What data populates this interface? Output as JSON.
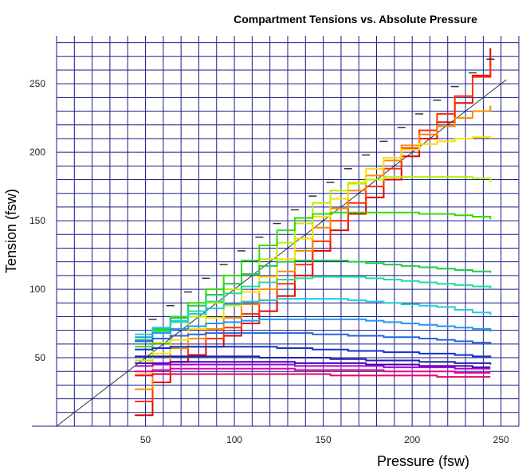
{
  "chart_data": {
    "type": "line",
    "title": "Compartment Tensions vs. Absolute Pressure",
    "xlabel": "Pressure (fsw)",
    "ylabel": "Tension (fsw)",
    "xlim": [
      0,
      260
    ],
    "ylim": [
      0,
      285
    ],
    "x_ticks": [
      50,
      100,
      150,
      200,
      250
    ],
    "y_ticks": [
      50,
      100,
      150,
      200,
      250
    ],
    "grid": true,
    "legend": "none",
    "identity_line": true,
    "pressures": [
      44,
      54,
      64,
      74,
      84,
      94,
      104,
      114,
      124,
      134,
      144,
      154,
      164,
      174,
      184,
      194,
      204,
      214,
      224,
      234,
      244
    ],
    "ceiling_markers": {
      "x": [
        54,
        64,
        74,
        84,
        94,
        104,
        114,
        124,
        134,
        144,
        154,
        164,
        174,
        184,
        194,
        204,
        214,
        224,
        234,
        244
      ],
      "y": [
        78,
        88,
        98,
        108,
        118,
        128,
        138,
        148,
        158,
        168,
        178,
        188,
        198,
        208,
        218,
        228,
        238,
        248,
        258,
        268
      ]
    },
    "series": [
      {
        "color": "#e60000",
        "values": [
          8,
          32,
          47,
          52,
          58,
          66,
          75,
          84,
          95,
          110,
          128,
          143,
          155,
          167,
          180,
          197,
          210,
          222,
          236,
          256,
          276
        ]
      },
      {
        "color": "#ff3300",
        "values": [
          18,
          38,
          51,
          58,
          64,
          72,
          82,
          92,
          104,
          118,
          135,
          150,
          163,
          175,
          188,
          203,
          216,
          228,
          241,
          255,
          268
        ]
      },
      {
        "color": "#ff8800",
        "values": [
          27,
          46,
          57,
          64,
          71,
          79,
          89,
          100,
          113,
          128,
          145,
          159,
          172,
          183,
          194,
          205,
          213,
          219,
          225,
          230,
          234
        ]
      },
      {
        "color": "#ffdd00",
        "values": [
          38,
          53,
          63,
          71,
          79,
          88,
          98,
          109,
          122,
          137,
          153,
          166,
          178,
          188,
          196,
          202,
          206,
          208,
          210,
          211,
          210
        ]
      },
      {
        "color": "#bbee00",
        "values": [
          48,
          61,
          71,
          80,
          90,
          100,
          111,
          122,
          134,
          148,
          163,
          172,
          177,
          180,
          182,
          182,
          182,
          182,
          182,
          181,
          178
        ]
      },
      {
        "color": "#33dd00",
        "values": [
          58,
          70,
          80,
          90,
          100,
          110,
          121,
          132,
          143,
          152,
          155,
          156,
          156,
          156,
          156,
          156,
          155,
          155,
          154,
          153,
          151
        ]
      },
      {
        "color": "#22cc44",
        "values": [
          63,
          71,
          79,
          88,
          96,
          104,
          111,
          117,
          120,
          121,
          121,
          121,
          120,
          119,
          118,
          117,
          116,
          115,
          114,
          113,
          112
        ]
      },
      {
        "color": "#22dd99",
        "values": [
          62,
          69,
          76,
          84,
          91,
          97,
          102,
          105,
          107,
          108,
          109,
          109,
          109,
          108,
          107,
          106,
          105,
          104,
          103,
          102,
          100
        ]
      },
      {
        "color": "#22ccdd",
        "values": [
          67,
          72,
          77,
          82,
          86,
          89,
          91,
          92,
          93,
          93,
          93,
          93,
          92,
          91,
          90,
          89,
          88,
          87,
          85,
          83,
          81
        ]
      },
      {
        "color": "#2299ee",
        "values": [
          65,
          68,
          71,
          73,
          75,
          76,
          77,
          78,
          78,
          78,
          78,
          78,
          78,
          77,
          76,
          75,
          74,
          73,
          72,
          71,
          69
        ]
      },
      {
        "color": "#2266dd",
        "values": [
          62,
          64,
          66,
          67,
          68,
          68,
          68,
          68,
          68,
          68,
          67,
          67,
          66,
          66,
          65,
          65,
          64,
          63,
          62,
          61,
          60
        ]
      },
      {
        "color": "#1133cc",
        "values": [
          56,
          57,
          58,
          58,
          58,
          58,
          58,
          58,
          57,
          57,
          56,
          56,
          55,
          55,
          54,
          54,
          53,
          53,
          52,
          51,
          50
        ]
      },
      {
        "color": "#2222aa",
        "values": [
          51,
          51,
          51,
          51,
          51,
          51,
          51,
          50,
          50,
          50,
          50,
          49,
          49,
          48,
          48,
          48,
          47,
          47,
          46,
          46,
          45
        ]
      },
      {
        "color": "#4400bb",
        "values": [
          46,
          46,
          47,
          47,
          47,
          47,
          47,
          47,
          47,
          46,
          46,
          46,
          46,
          45,
          45,
          45,
          44,
          44,
          44,
          43,
          43
        ]
      },
      {
        "color": "#aa00cc",
        "values": [
          44,
          45,
          45,
          45,
          45,
          45,
          45,
          45,
          45,
          44,
          44,
          44,
          44,
          44,
          43,
          43,
          43,
          43,
          42,
          42,
          42
        ]
      },
      {
        "color": "#dd00aa",
        "values": [
          40,
          41,
          42,
          42,
          42,
          42,
          42,
          42,
          42,
          41,
          41,
          41,
          41,
          41,
          40,
          40,
          40,
          40,
          39,
          39,
          39
        ]
      },
      {
        "color": "#ee0066",
        "values": [
          37,
          38,
          38,
          38,
          38,
          38,
          38,
          38,
          38,
          38,
          38,
          37,
          37,
          37,
          37,
          37,
          37,
          36,
          36,
          36,
          36
        ]
      }
    ]
  }
}
